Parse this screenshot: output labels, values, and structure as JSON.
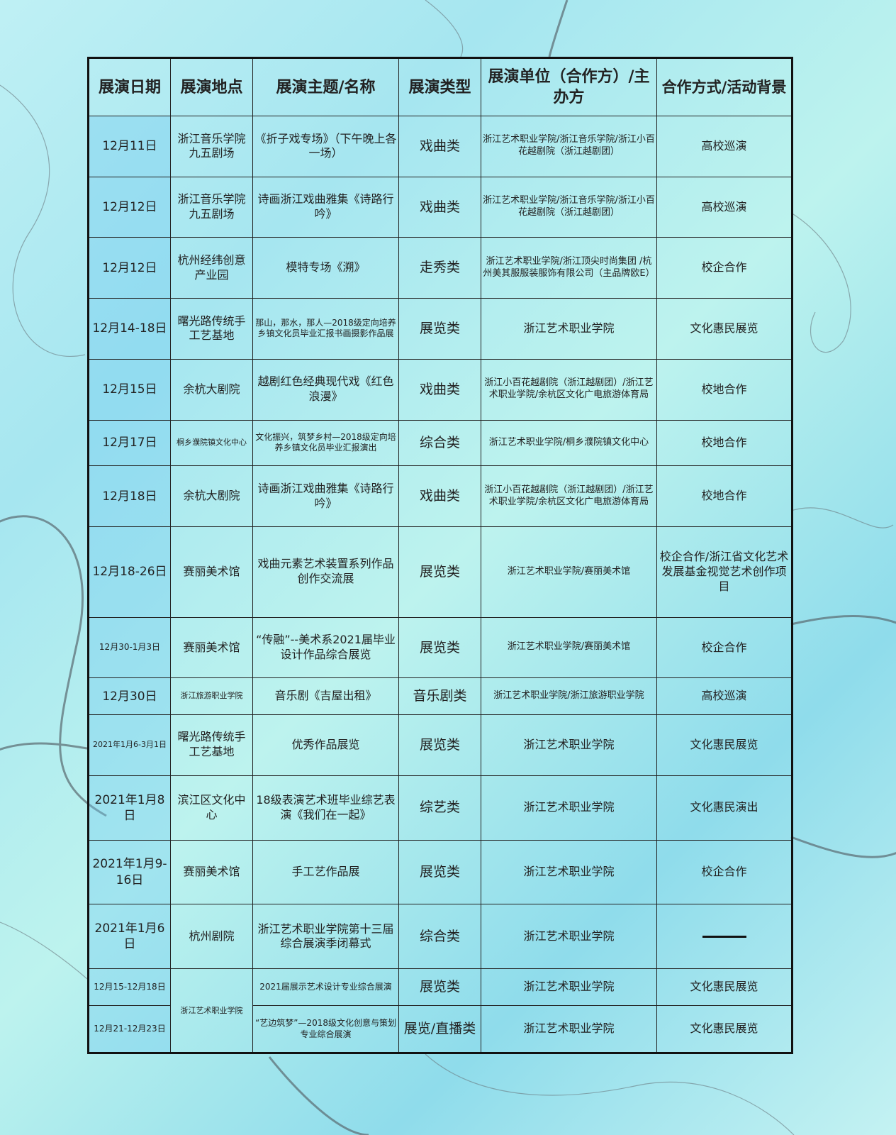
{
  "headers": [
    "展演日期",
    "展演地点",
    "展演主题/名称",
    "展演类型",
    "展演单位（合作方）/主办方",
    "合作方式/活动背景"
  ],
  "rows": [
    {
      "date": "12月11日",
      "place": "浙江音乐学院九五剧场",
      "title": "《折子戏专场》（下午晚上各一场）",
      "type": "戏曲类",
      "org": "浙江艺术职业学院/浙江音乐学院/浙江小百花越剧院（浙江越剧团）",
      "coop": "高校巡演"
    },
    {
      "date": "12月12日",
      "place": "浙江音乐学院九五剧场",
      "title": "诗画浙江戏曲雅集《诗路行吟》",
      "type": "戏曲类",
      "org": "浙江艺术职业学院/浙江音乐学院/浙江小百花越剧院（浙江越剧团）",
      "coop": "高校巡演"
    },
    {
      "date": "12月12日",
      "place": "杭州经纬创意产业园",
      "title": "模特专场《溯》",
      "type": "走秀类",
      "org": "浙江艺术职业学院/浙江顶尖时尚集团 /杭州美其服服装服饰有限公司（主品牌欧E）",
      "coop": "校企合作"
    },
    {
      "date": "12月14-18日",
      "place": "曙光路传统手工艺基地",
      "title": "那山，那水，那人—2018级定向培养乡镇文化员毕业汇报书画摄影作品展",
      "type": "展览类",
      "org": "浙江艺术职业学院",
      "coop": "文化惠民展览"
    },
    {
      "date": "12月15日",
      "place": "余杭大剧院",
      "title": "越剧红色经典现代戏《红色浪漫》",
      "type": "戏曲类",
      "org": "浙江小百花越剧院（浙江越剧团）/浙江艺术职业学院/余杭区文化广电旅游体育局",
      "coop": "校地合作"
    },
    {
      "date": "12月17日",
      "place": "桐乡濮院镇文化中心",
      "title": "文化振兴，筑梦乡村—2018级定向培养乡镇文化员毕业汇报演出",
      "type": "综合类",
      "org": "浙江艺术职业学院/桐乡濮院镇文化中心",
      "coop": "校地合作"
    },
    {
      "date": "12月18日",
      "place": "余杭大剧院",
      "title": "诗画浙江戏曲雅集《诗路行吟》",
      "type": "戏曲类",
      "org": "浙江小百花越剧院（浙江越剧团）/浙江艺术职业学院/余杭区文化广电旅游体育局",
      "coop": "校地合作"
    },
    {
      "date": "12月18-26日",
      "place": "赛丽美术馆",
      "title": "戏曲元素艺术装置系列作品创作交流展",
      "type": "展览类",
      "org": "浙江艺术职业学院/赛丽美术馆",
      "coop": "校企合作/浙江省文化艺术发展基金视觉艺术创作项目"
    },
    {
      "date": "12月30-1月3日",
      "place": "赛丽美术馆",
      "title": "“传融”--美术系2021届毕业设计作品综合展览",
      "type": "展览类",
      "org": "浙江艺术职业学院/赛丽美术馆",
      "coop": "校企合作"
    },
    {
      "date": "12月30日",
      "place": "浙江旅游职业学院",
      "title": "音乐剧《吉屋出租》",
      "type": "音乐剧类",
      "org": "浙江艺术职业学院/浙江旅游职业学院",
      "coop": "高校巡演"
    },
    {
      "date": "2021年1月6-3月1日",
      "place": "曙光路传统手工艺基地",
      "title": "优秀作品展览",
      "type": "展览类",
      "org": "浙江艺术职业学院",
      "coop": "文化惠民展览"
    },
    {
      "date": "2021年1月8日",
      "place": "滨江区文化中心",
      "title": "18级表演艺术班毕业综艺表演《我们在一起》",
      "type": "综艺类",
      "org": "浙江艺术职业学院",
      "coop": "文化惠民演出"
    },
    {
      "date": "2021年1月9-16日",
      "place": "赛丽美术馆",
      "title": "手工艺作品展",
      "type": "展览类",
      "org": "浙江艺术职业学院",
      "coop": "校企合作"
    },
    {
      "date": "2021年1月6日",
      "place": "杭州剧院",
      "title": "浙江艺术职业学院第十三届综合展演季闭幕式",
      "type": "综合类",
      "org": "浙江艺术职业学院",
      "coop": "——"
    },
    {
      "date": "12月15-12月18日",
      "place": "浙江艺术职业学院",
      "title": "2021届展示艺术设计专业综合展演",
      "type": "展览类",
      "org": "浙江艺术职业学院",
      "coop": "文化惠民展览"
    },
    {
      "date": "12月21-12月23日",
      "place": "",
      "title": "“艺边筑梦”—2018级文化创意与策划专业综合展演",
      "type": "展览/直播类",
      "org": "浙江艺术职业学院",
      "coop": "文化惠民展览"
    }
  ]
}
